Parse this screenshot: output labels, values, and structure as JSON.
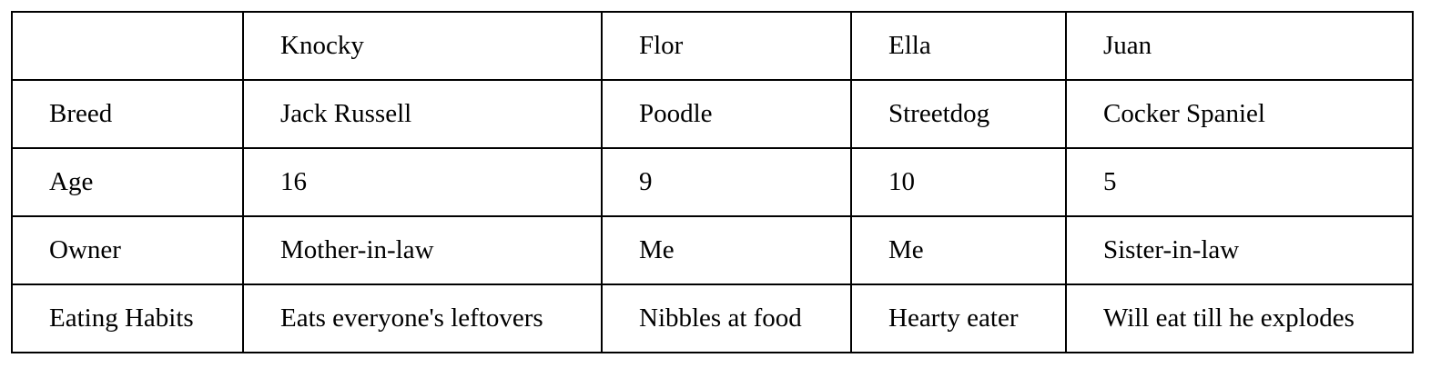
{
  "table": {
    "header": [
      "",
      "Knocky",
      "Flor",
      "Ella",
      "Juan"
    ],
    "rows": [
      [
        "Breed",
        "Jack Russell",
        "Poodle",
        "Streetdog",
        "Cocker Spaniel"
      ],
      [
        "Age",
        "16",
        "9",
        "10",
        "5"
      ],
      [
        "Owner",
        "Mother-in-law",
        "Me",
        "Me",
        "Sister-in-law"
      ],
      [
        "Eating Habits",
        "Eats everyone's leftovers",
        "Nibbles at food",
        "Hearty eater",
        "Will eat till he explodes"
      ]
    ]
  },
  "colors": {
    "border": "#000000",
    "text": "#000000",
    "background": "#ffffff"
  }
}
